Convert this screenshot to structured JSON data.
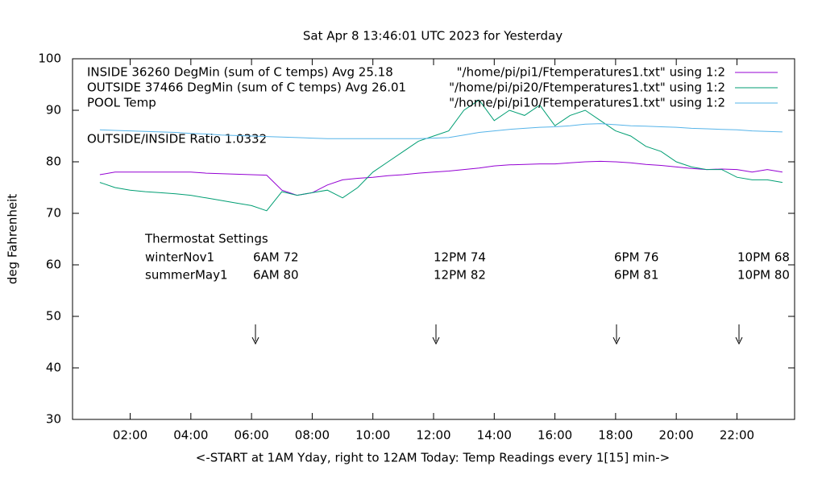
{
  "chart_data": {
    "type": "line",
    "title": "Sat Apr  8 13:46:01 UTC 2023 for Yesterday",
    "x_label": "<-START at 1AM Yday, right to 12AM Today:  Temp Readings every 1[15] min->",
    "y_label": "deg Fahrenheit",
    "xlim": [
      0.1,
      23.9
    ],
    "ylim": [
      30,
      100
    ],
    "xticks": [
      {
        "value": 2,
        "label": "02:00"
      },
      {
        "value": 4,
        "label": "04:00"
      },
      {
        "value": 6,
        "label": "06:00"
      },
      {
        "value": 8,
        "label": "08:00"
      },
      {
        "value": 10,
        "label": "10:00"
      },
      {
        "value": 12,
        "label": "12:00"
      },
      {
        "value": 14,
        "label": "14:00"
      },
      {
        "value": 16,
        "label": "16:00"
      },
      {
        "value": 18,
        "label": "18:00"
      },
      {
        "value": 20,
        "label": "20:00"
      },
      {
        "value": 22,
        "label": "22:00"
      }
    ],
    "yticks": [
      30,
      40,
      50,
      60,
      70,
      80,
      90,
      100
    ],
    "x": [
      1,
      1.5,
      2,
      2.5,
      3,
      3.5,
      4,
      4.5,
      5,
      5.5,
      6,
      6.5,
      7,
      7.5,
      8,
      8.5,
      9,
      9.5,
      10,
      10.5,
      11,
      11.5,
      12,
      12.5,
      13,
      13.5,
      14,
      14.5,
      15,
      15.5,
      16,
      16.5,
      17,
      17.5,
      18,
      18.5,
      19,
      19.5,
      20,
      20.5,
      21,
      21.5,
      22,
      22.5,
      23,
      23.5
    ],
    "series": [
      {
        "name": "INSIDE 36260 DegMin (sum of C temps) Avg 25.18",
        "source": "\"/home/pi/pi1/Ftemperatures1.txt\" using 1:2",
        "color": "#9400d3",
        "values": [
          77.5,
          78,
          78,
          78,
          78,
          78,
          78,
          77.8,
          77.7,
          77.6,
          77.5,
          77.4,
          74.5,
          73.5,
          74,
          75.5,
          76.5,
          76.8,
          77,
          77.3,
          77.5,
          77.8,
          78,
          78.2,
          78.5,
          78.8,
          79.2,
          79.4,
          79.5,
          79.6,
          79.6,
          79.8,
          80,
          80.1,
          80,
          79.8,
          79.5,
          79.3,
          79,
          78.7,
          78.5,
          78.6,
          78.5,
          78,
          78.5,
          78
        ]
      },
      {
        "name": "OUTSIDE 37466 DegMin (sum of C temps) Avg 26.01",
        "source": "\"/home/pi/pi20/Ftemperatures1.txt\" using 1:2",
        "color": "#009e73",
        "values": [
          76,
          75,
          74.5,
          74.2,
          74,
          73.8,
          73.5,
          73,
          72.5,
          72,
          71.5,
          70.5,
          74.2,
          73.5,
          74,
          74.5,
          73,
          75,
          78,
          80,
          82,
          84,
          85,
          86,
          90,
          92,
          88,
          90,
          89,
          91,
          87,
          89,
          90,
          88,
          86,
          85,
          83,
          82,
          80,
          79,
          78.5,
          78.5,
          77,
          76.5,
          76.5,
          76
        ]
      },
      {
        "name": "POOL Temp",
        "source": "\"/home/pi/pi10/Ftemperatures1.txt\" using 1:2",
        "color": "#56b4e9",
        "values": [
          86.2,
          86.1,
          86,
          85.9,
          85.8,
          85.7,
          85.5,
          85.4,
          85.2,
          85.1,
          85,
          84.9,
          84.8,
          84.7,
          84.6,
          84.5,
          84.5,
          84.5,
          84.5,
          84.5,
          84.5,
          84.5,
          84.6,
          84.7,
          85.2,
          85.7,
          86,
          86.3,
          86.5,
          86.7,
          86.8,
          87,
          87.3,
          87.4,
          87.2,
          87,
          86.9,
          86.8,
          86.7,
          86.5,
          86.4,
          86.3,
          86.2,
          86,
          85.9,
          85.8
        ]
      }
    ],
    "annotations": {
      "ratio": "OUTSIDE/INSIDE Ratio 1.0332",
      "thermostat_title": "Thermostat Settings",
      "thermostat_rows": [
        [
          "winterNov1",
          "6AM 72",
          "12PM 74",
          "6PM 76",
          "10PM 68"
        ],
        [
          "summerMay1",
          "6AM 80",
          "12PM 82",
          "6PM 81",
          "10PM 80"
        ]
      ]
    }
  }
}
